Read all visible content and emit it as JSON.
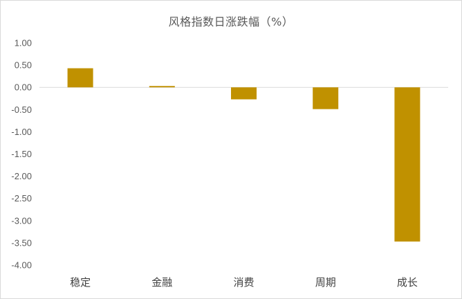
{
  "chart_data": {
    "type": "bar",
    "title": "风格指数日涨跌幅（%）",
    "categories": [
      "稳定",
      "金融",
      "消费",
      "周期",
      "成长"
    ],
    "series": [
      {
        "values": [
          0.43,
          0.03,
          -0.27,
          -0.49,
          -3.47
        ]
      }
    ],
    "ylim": [
      -4.0,
      1.0
    ],
    "yticks": [
      "1.00",
      "0.50",
      "0.00",
      "-0.50",
      "-1.00",
      "-1.50",
      "-2.00",
      "-2.50",
      "-3.00",
      "-3.50",
      "-4.00"
    ],
    "grid": false,
    "legend": "none"
  },
  "colors": {
    "bar": "#c09100",
    "axis": "#d9d9d9",
    "text": "#595959"
  }
}
